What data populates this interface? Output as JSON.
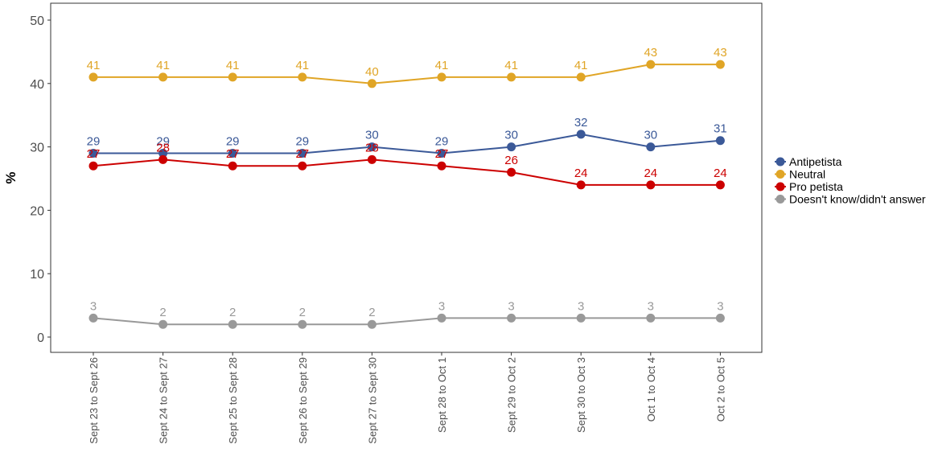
{
  "chart_data": {
    "type": "line",
    "title": "",
    "xlabel": "",
    "ylabel": "%",
    "ylim": [
      0,
      50
    ],
    "yticks": [
      0,
      10,
      20,
      30,
      40,
      50
    ],
    "categories": [
      "Sept 23 to Sept 26",
      "Sept 24 to Sept 27",
      "Sept 25 to Sept 28",
      "Sept 26 to Sept 29",
      "Sept 27 to Sept 30",
      "Sept 28 to Oct 1",
      "Sept 29 to Oct 2",
      "Sept 30 to Oct 3",
      "Oct 1 to Oct 4",
      "Oct 2 to Oct 5"
    ],
    "series": [
      {
        "name": "Antipetista",
        "color": "#3b5998",
        "values": [
          29,
          29,
          29,
          29,
          30,
          29,
          30,
          32,
          30,
          31
        ]
      },
      {
        "name": "Neutral",
        "color": "#e0a526",
        "values": [
          41,
          41,
          41,
          41,
          40,
          41,
          41,
          41,
          43,
          43
        ]
      },
      {
        "name": "Pro petista",
        "color": "#cc0000",
        "values": [
          27,
          28,
          27,
          27,
          28,
          27,
          26,
          24,
          24,
          24
        ]
      },
      {
        "name": "Doesn't know/didn't answer",
        "color": "#999999",
        "values": [
          3,
          2,
          2,
          2,
          2,
          3,
          3,
          3,
          3,
          3
        ]
      }
    ],
    "grid": false,
    "legend_position": "right"
  }
}
